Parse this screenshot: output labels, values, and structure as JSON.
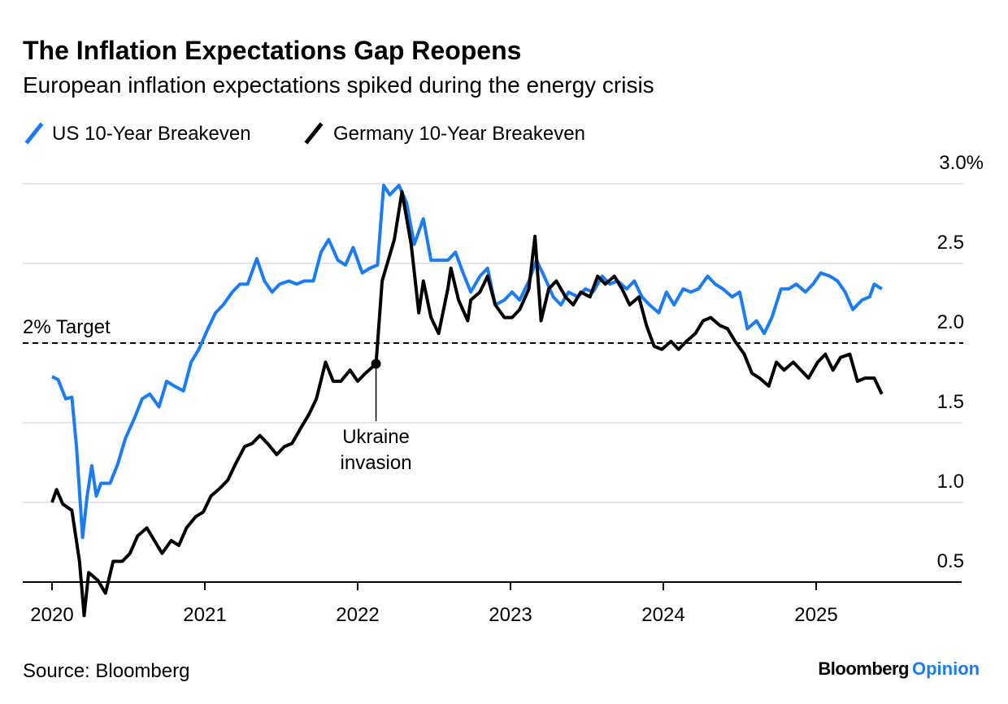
{
  "chart_data": {
    "type": "line",
    "title": "The Inflation Expectations Gap Reopens",
    "subtitle": "European inflation expectations spiked during the energy crisis",
    "source": "Source: Bloomberg",
    "brand": {
      "name": "Bloomberg",
      "suffix": "Opinion"
    },
    "colors": {
      "us": "#1a7cf0",
      "germany": "#000000",
      "grid": "#e6e6e6",
      "brand_accent": "#1a7cf0"
    },
    "grid": true,
    "legend_placement": "top-left",
    "xlim": [
      2019.8,
      2025.95
    ],
    "ylim": [
      0.5,
      3.0
    ],
    "x_ticks": [
      {
        "value": 2020,
        "label": "2020"
      },
      {
        "value": 2021,
        "label": "2021"
      },
      {
        "value": 2022,
        "label": "2022"
      },
      {
        "value": 2023,
        "label": "2023"
      },
      {
        "value": 2024,
        "label": "2024"
      },
      {
        "value": 2025,
        "label": "2025"
      }
    ],
    "y_ticks": [
      {
        "value": 3.0,
        "label": "3.0%"
      },
      {
        "value": 2.5,
        "label": "2.5"
      },
      {
        "value": 2.0,
        "label": "2.0"
      },
      {
        "value": 1.5,
        "label": "1.5"
      },
      {
        "value": 1.0,
        "label": "1.0"
      },
      {
        "value": 0.5,
        "label": "0.5"
      }
    ],
    "reference_line": {
      "value": 2.0,
      "label": "2% Target",
      "style": "dashed"
    },
    "annotation": {
      "x": 2022.12,
      "y": 1.87,
      "lines": [
        "Ukraine",
        "invasion"
      ]
    },
    "series": [
      {
        "name": "US 10-Year Breakeven",
        "color": "#1a7cf0",
        "x": [
          2020.0,
          2020.04,
          2020.09,
          2020.13,
          2020.16,
          2020.2,
          2020.23,
          2020.26,
          2020.29,
          2020.32,
          2020.38,
          2020.43,
          2020.48,
          2020.54,
          2020.59,
          2020.64,
          2020.7,
          2020.75,
          2020.8,
          2020.86,
          2020.91,
          2020.96,
          2021.02,
          2021.07,
          2021.12,
          2021.18,
          2021.23,
          2021.28,
          2021.34,
          2021.39,
          2021.44,
          2021.49,
          2021.55,
          2021.6,
          2021.65,
          2021.71,
          2021.76,
          2021.81,
          2021.87,
          2021.92,
          2021.97,
          2022.03,
          2022.08,
          2022.13,
          2022.17,
          2022.21,
          2022.27,
          2022.32,
          2022.37,
          2022.43,
          2022.48,
          2022.53,
          2022.59,
          2022.64,
          2022.69,
          2022.74,
          2022.8,
          2022.85,
          2022.9,
          2022.96,
          2023.01,
          2023.06,
          2023.12,
          2023.17,
          2023.22,
          2023.28,
          2023.33,
          2023.38,
          2023.44,
          2023.49,
          2023.54,
          2023.6,
          2023.65,
          2023.7,
          2023.76,
          2023.81,
          2023.86,
          2023.91,
          2023.97,
          2024.02,
          2024.07,
          2024.13,
          2024.18,
          2024.23,
          2024.29,
          2024.34,
          2024.39,
          2024.45,
          2024.5,
          2024.55,
          2024.61,
          2024.66,
          2024.71,
          2024.77,
          2024.82,
          2024.87,
          2024.93,
          2024.98,
          2025.03,
          2025.09,
          2025.14,
          2025.19,
          2025.24,
          2025.3,
          2025.35,
          2025.38,
          2025.43
        ],
        "y": [
          1.79,
          1.77,
          1.65,
          1.66,
          1.35,
          0.78,
          1.04,
          1.23,
          1.04,
          1.12,
          1.12,
          1.24,
          1.4,
          1.53,
          1.65,
          1.68,
          1.6,
          1.76,
          1.73,
          1.7,
          1.88,
          1.96,
          2.09,
          2.19,
          2.24,
          2.32,
          2.37,
          2.37,
          2.53,
          2.39,
          2.32,
          2.37,
          2.39,
          2.37,
          2.39,
          2.39,
          2.57,
          2.65,
          2.52,
          2.49,
          2.6,
          2.44,
          2.47,
          2.49,
          2.99,
          2.93,
          2.99,
          2.88,
          2.62,
          2.78,
          2.52,
          2.52,
          2.52,
          2.57,
          2.44,
          2.32,
          2.42,
          2.47,
          2.24,
          2.27,
          2.32,
          2.27,
          2.39,
          2.52,
          2.42,
          2.29,
          2.24,
          2.32,
          2.29,
          2.34,
          2.32,
          2.42,
          2.37,
          2.39,
          2.34,
          2.39,
          2.29,
          2.24,
          2.19,
          2.32,
          2.24,
          2.34,
          2.32,
          2.34,
          2.42,
          2.37,
          2.34,
          2.29,
          2.32,
          2.09,
          2.14,
          2.06,
          2.16,
          2.34,
          2.34,
          2.37,
          2.32,
          2.37,
          2.44,
          2.42,
          2.39,
          2.32,
          2.21,
          2.27,
          2.29,
          2.37,
          2.34
        ]
      },
      {
        "name": "Germany 10-Year Breakeven",
        "color": "#000000",
        "x": [
          2020.0,
          2020.03,
          2020.07,
          2020.13,
          2020.18,
          2020.21,
          2020.24,
          2020.3,
          2020.35,
          2020.4,
          2020.46,
          2020.51,
          2020.56,
          2020.62,
          2020.67,
          2020.72,
          2020.78,
          2020.83,
          2020.88,
          2020.94,
          2020.99,
          2021.04,
          2021.1,
          2021.15,
          2021.2,
          2021.26,
          2021.31,
          2021.36,
          2021.41,
          2021.47,
          2021.52,
          2021.57,
          2021.63,
          2021.68,
          2021.73,
          2021.79,
          2021.84,
          2021.89,
          2021.95,
          2022.0,
          2022.05,
          2022.12,
          2022.16,
          2022.2,
          2022.24,
          2022.29,
          2022.35,
          2022.4,
          2022.43,
          2022.48,
          2022.53,
          2022.59,
          2022.61,
          2022.66,
          2022.72,
          2022.74,
          2022.8,
          2022.85,
          2022.9,
          2022.96,
          2023.01,
          2023.06,
          2023.12,
          2023.16,
          2023.2,
          2023.25,
          2023.3,
          2023.36,
          2023.41,
          2023.46,
          2023.52,
          2023.57,
          2023.62,
          2023.68,
          2023.73,
          2023.78,
          2023.84,
          2023.89,
          2023.94,
          2023.99,
          2024.05,
          2024.1,
          2024.15,
          2024.21,
          2024.26,
          2024.31,
          2024.37,
          2024.42,
          2024.47,
          2024.53,
          2024.58,
          2024.63,
          2024.69,
          2024.74,
          2024.79,
          2024.85,
          2024.9,
          2024.95,
          2025.01,
          2025.06,
          2025.11,
          2025.16,
          2025.22,
          2025.27,
          2025.32,
          2025.38,
          2025.43
        ],
        "y": [
          1.0,
          1.08,
          0.99,
          0.95,
          0.63,
          0.29,
          0.56,
          0.51,
          0.43,
          0.63,
          0.63,
          0.68,
          0.79,
          0.84,
          0.76,
          0.68,
          0.76,
          0.73,
          0.84,
          0.91,
          0.94,
          1.04,
          1.09,
          1.14,
          1.24,
          1.35,
          1.37,
          1.42,
          1.37,
          1.3,
          1.35,
          1.37,
          1.47,
          1.55,
          1.65,
          1.88,
          1.76,
          1.76,
          1.83,
          1.76,
          1.81,
          1.87,
          2.39,
          2.52,
          2.65,
          2.95,
          2.62,
          2.19,
          2.39,
          2.16,
          2.06,
          2.34,
          2.47,
          2.27,
          2.14,
          2.27,
          2.32,
          2.42,
          2.24,
          2.16,
          2.16,
          2.21,
          2.34,
          2.67,
          2.14,
          2.34,
          2.39,
          2.29,
          2.24,
          2.32,
          2.29,
          2.42,
          2.37,
          2.42,
          2.34,
          2.24,
          2.29,
          2.11,
          1.98,
          1.96,
          2.01,
          1.96,
          2.01,
          2.06,
          2.14,
          2.16,
          2.11,
          2.09,
          2.01,
          1.93,
          1.81,
          1.78,
          1.73,
          1.88,
          1.83,
          1.88,
          1.83,
          1.78,
          1.88,
          1.93,
          1.83,
          1.91,
          1.93,
          1.76,
          1.78,
          1.78,
          1.68
        ]
      }
    ]
  }
}
